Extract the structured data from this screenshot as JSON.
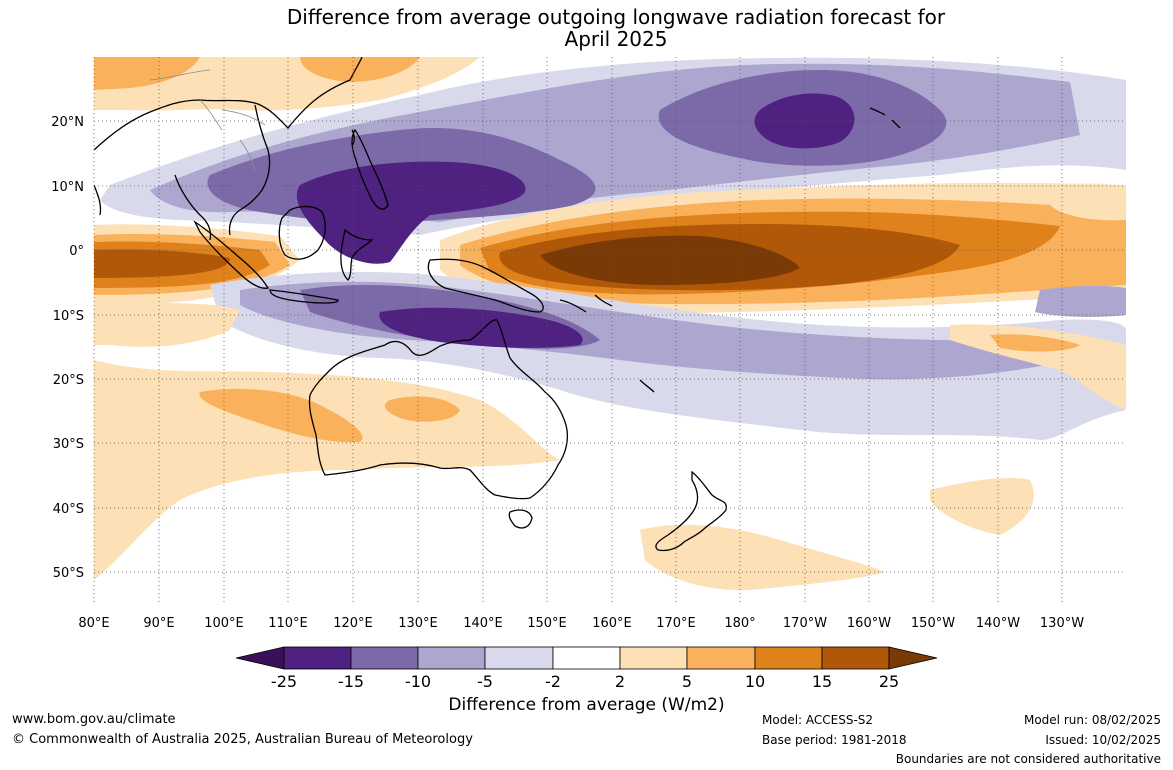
{
  "title": {
    "line1": "Difference from average outgoing longwave radiation forecast for",
    "line2": "April 2025"
  },
  "axes": {
    "lat_labels": [
      "20°N",
      "10°N",
      "0°",
      "10°S",
      "20°S",
      "30°S",
      "40°S",
      "50°S"
    ],
    "lon_labels": [
      "80°E",
      "90°E",
      "100°E",
      "110°E",
      "120°E",
      "130°E",
      "140°E",
      "150°E",
      "160°E",
      "170°E",
      "180°",
      "170°W",
      "160°W",
      "150°W",
      "140°W",
      "130°W"
    ]
  },
  "colorbar": {
    "ticks": [
      "-25",
      "-15",
      "-10",
      "-5",
      "-2",
      "2",
      "5",
      "10",
      "15",
      "25"
    ],
    "label": "Difference from average (W/m2)",
    "colors": {
      "extend_low": "#3a1059",
      "bin_neg25_neg15": "#4f2180",
      "bin_neg15_neg10": "#7c6aa8",
      "bin_neg10_neg5": "#ada6cf",
      "bin_neg5_neg2": "#d9d9ec",
      "bin_neg2_2": "#ffffff",
      "bin_2_5": "#fde0b6",
      "bin_5_10": "#fab15c",
      "bin_10_15": "#e0821c",
      "bin_15_25": "#b05708",
      "extend_high": "#7a3a06"
    }
  },
  "footer": {
    "website": "www.bom.gov.au/climate",
    "copyright": "© Commonwealth of Australia 2025, Australian Bureau of Meteorology",
    "model": "Model: ACCESS-S2",
    "base_period": "Base period: 1981-2018",
    "model_run": "Model run: 08/02/2025",
    "issued": "Issued: 10/02/2025",
    "disclaimer": "Boundaries are not considered authoritative"
  }
}
